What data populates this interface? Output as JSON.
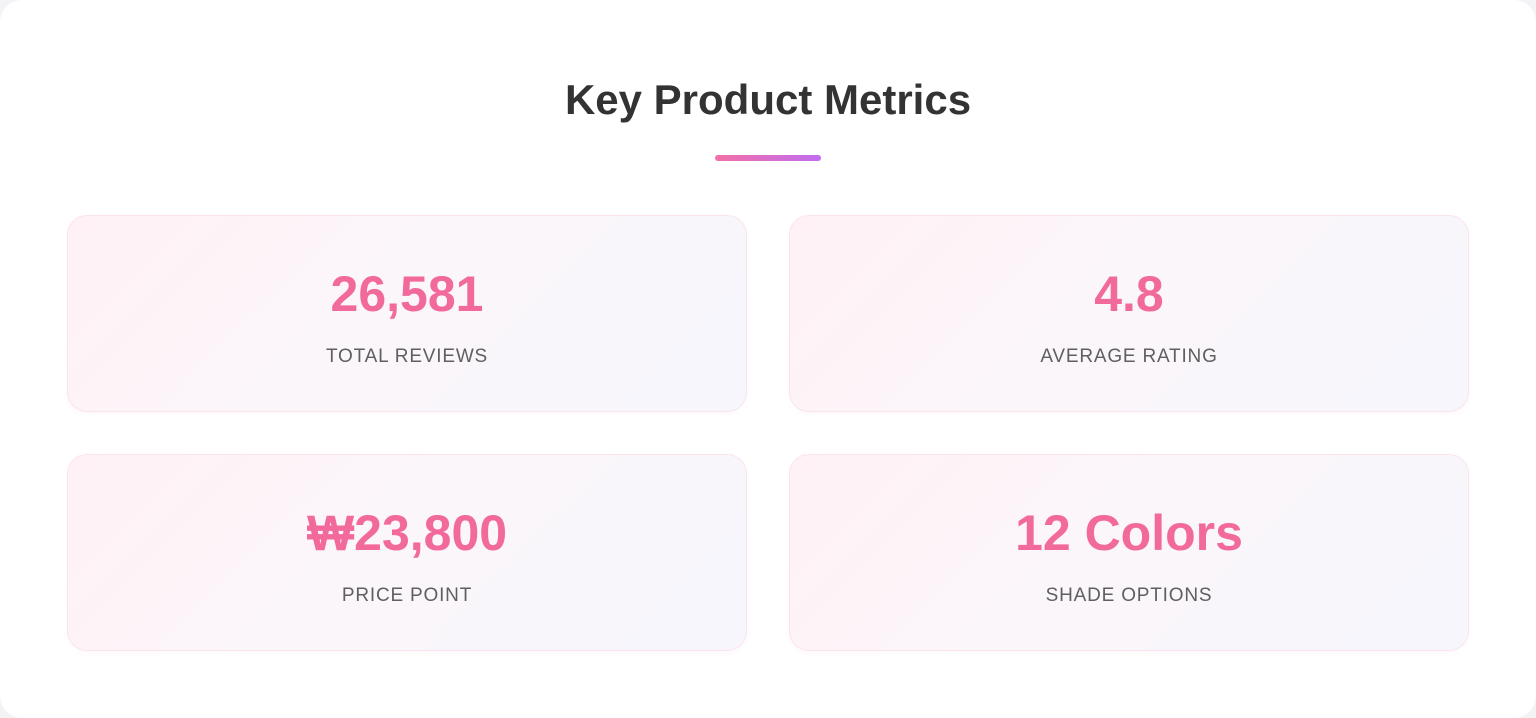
{
  "header": {
    "title": "Key Product Metrics"
  },
  "metrics": [
    {
      "value": "26,581",
      "label": "TOTAL REVIEWS"
    },
    {
      "value": "4.8",
      "label": "AVERAGE RATING"
    },
    {
      "value": "₩23,800",
      "label": "PRICE POINT"
    },
    {
      "value": "12 Colors",
      "label": "SHADE OPTIONS"
    }
  ],
  "colors": {
    "accent": "#f2699b",
    "accent_gradient_end": "#c06df0",
    "title": "#333333",
    "label": "#5f5f5f"
  }
}
